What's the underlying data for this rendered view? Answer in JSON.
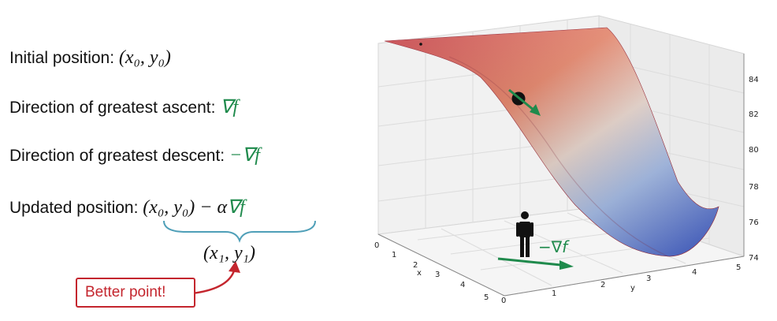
{
  "lines": {
    "initial_label": "Initial position: ",
    "initial_math": "(x₀, y₀)",
    "ascent_label": "Direction of greatest ascent: ",
    "ascent_math": "∇f",
    "descent_label": "Direction of greatest descent: ",
    "descent_math": "−∇f",
    "updated_label": "Updated position: ",
    "updated_math_a": "(x₀, y₀) − α",
    "updated_math_b": "∇f",
    "result_math": "(x₁, y₁)",
    "better_point": "Better point!"
  },
  "plot": {
    "gradient_label": "−∇f",
    "z_ticks": [
      "84",
      "82",
      "80",
      "78",
      "76",
      "74"
    ],
    "x_ticks": [
      "0",
      "1",
      "2",
      "3",
      "4",
      "5"
    ],
    "x_label": "x",
    "y_ticks": [
      "0",
      "1",
      "2",
      "3",
      "4",
      "5"
    ],
    "y_label": "y"
  },
  "colors": {
    "green": "#1f8a4c",
    "red_accent": "#c4262e",
    "brace": "#4f9fb8",
    "surface_high": "#c0303a",
    "surface_low": "#3b57c4"
  }
}
